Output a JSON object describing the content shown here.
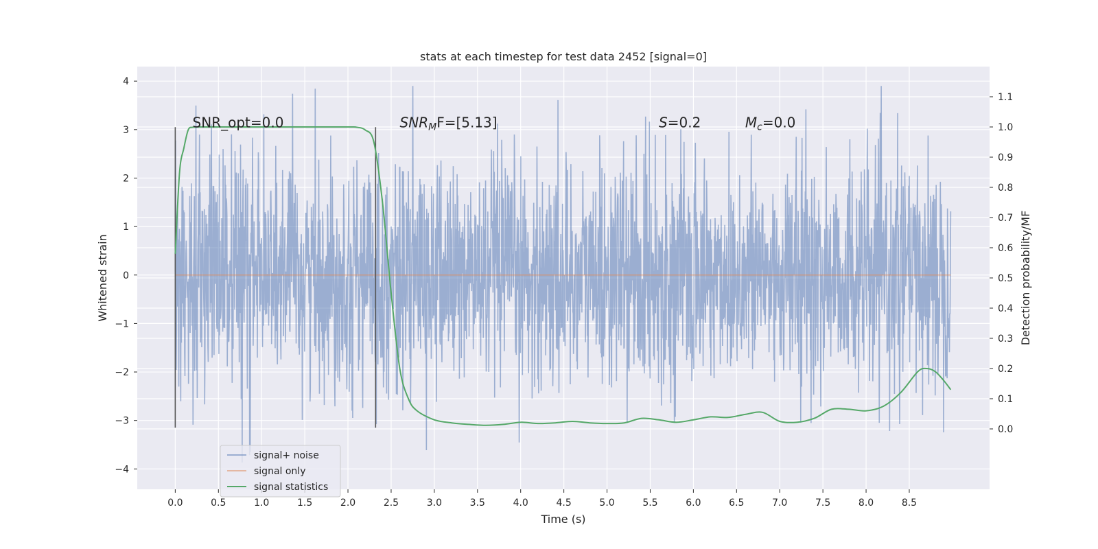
{
  "chart_data": {
    "type": "line",
    "title": "stats at each timestep for test data 2452 [signal=0]",
    "xlabel": "Time (s)",
    "ylabel": "Whitened strain",
    "y2label": "Detection probability/MF",
    "xlim": [
      -0.44,
      9.43
    ],
    "ylim": [
      -4.42,
      4.3
    ],
    "y2lim": [
      -0.2,
      1.2
    ],
    "xticks": [
      "0.0",
      "0.5",
      "1.0",
      "1.5",
      "2.0",
      "2.5",
      "3.0",
      "3.5",
      "4.0",
      "4.5",
      "5.0",
      "5.5",
      "6.0",
      "6.5",
      "7.0",
      "7.5",
      "8.0",
      "8.5"
    ],
    "yticks": [
      "4",
      "3",
      "2",
      "1",
      "0",
      "−1",
      "−2",
      "−3",
      "−4"
    ],
    "y2ticks": [
      "0.0",
      "0.1",
      "0.2",
      "0.3",
      "0.4",
      "0.5",
      "0.6",
      "0.7",
      "0.8",
      "0.9",
      "1.0",
      "1.1"
    ],
    "grid": true,
    "legend_placement": "lower-left",
    "series": [
      {
        "name": "signal+ noise",
        "color": "#4c72b0",
        "description_range": [
          -4.0,
          3.9
        ],
        "x_range": [
          0.0,
          8.98
        ]
      },
      {
        "name": "signal only",
        "color": "#dd8452",
        "value": 0.0,
        "x_range": [
          0.0,
          8.98
        ]
      },
      {
        "name": "signal statistics",
        "color": "#55a868",
        "axis": "right",
        "x": [
          0.0,
          0.05,
          0.1,
          0.15,
          0.2,
          0.3,
          0.5,
          1.0,
          1.5,
          2.0,
          2.1,
          2.2,
          2.3,
          2.4,
          2.5,
          2.6,
          2.7,
          2.8,
          3.0,
          3.2,
          3.4,
          3.6,
          3.8,
          4.0,
          4.2,
          4.4,
          4.6,
          4.8,
          5.0,
          5.2,
          5.4,
          5.6,
          5.8,
          6.0,
          6.2,
          6.4,
          6.6,
          6.8,
          7.0,
          7.2,
          7.4,
          7.6,
          7.8,
          8.0,
          8.2,
          8.4,
          8.6,
          8.7,
          8.8,
          8.9,
          8.98
        ],
        "values": [
          0.58,
          0.85,
          0.93,
          0.99,
          0.999,
          1.0,
          1.0,
          1.0,
          1.0,
          1.0,
          0.999,
          0.99,
          0.95,
          0.75,
          0.45,
          0.2,
          0.1,
          0.06,
          0.03,
          0.02,
          0.015,
          0.012,
          0.015,
          0.022,
          0.018,
          0.02,
          0.025,
          0.02,
          0.018,
          0.02,
          0.035,
          0.03,
          0.022,
          0.03,
          0.04,
          0.038,
          0.048,
          0.055,
          0.025,
          0.022,
          0.035,
          0.065,
          0.065,
          0.06,
          0.075,
          0.12,
          0.19,
          0.2,
          0.19,
          0.16,
          0.13
        ]
      }
    ],
    "vlines": [
      0.0,
      2.32
    ],
    "annotations": [
      {
        "text": "SNR_opt=0.0",
        "x": 0.2,
        "y": 3.05
      },
      {
        "text_main": "SNR",
        "text_sub": "M",
        "text_tail": "F=[5.13]",
        "x": 2.6,
        "y": 3.05
      },
      {
        "text_main": "S",
        "text_tail": "=0.2",
        "x": 5.6,
        "y": 3.05
      },
      {
        "text_main": "M",
        "text_sub": "c",
        "text_tail": "=0.0",
        "x": 6.6,
        "y": 3.05
      }
    ]
  },
  "legend": {
    "items": [
      "signal+ noise",
      "signal only",
      "signal statistics"
    ]
  }
}
